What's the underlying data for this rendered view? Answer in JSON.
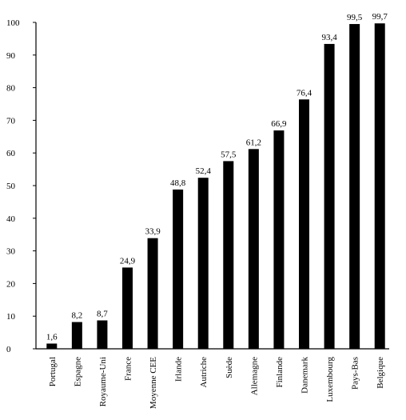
{
  "chart_data": {
    "type": "bar",
    "title": "",
    "xlabel": "",
    "ylabel": "",
    "ylim": [
      0,
      100
    ],
    "yticks": [
      0,
      10,
      20,
      30,
      40,
      50,
      60,
      70,
      80,
      90,
      100
    ],
    "grid": false,
    "legend": "none",
    "bar_color": "#000000",
    "categories": [
      "Portugal",
      "Espagne",
      "Royaume-Uni",
      "France",
      "Moyenne CEE",
      "Irlande",
      "Autriche",
      "Suède",
      "Allemagne",
      "Finlande",
      "Danemark",
      "Luxembourg",
      "Pays-Bas",
      "Belgique"
    ],
    "values": [
      1.6,
      8.2,
      8.7,
      24.9,
      33.9,
      48.8,
      52.4,
      57.5,
      61.2,
      66.9,
      76.4,
      93.4,
      99.5,
      99.7
    ],
    "value_labels": [
      "1,6",
      "8,2",
      "8,7",
      "24,9",
      "33,9",
      "48,8",
      "52,4",
      "57,5",
      "61,2",
      "66,9",
      "76,4",
      "93,4",
      "99,5",
      "99,7"
    ],
    "category_labels": [
      "Portugal",
      "Espagne",
      "Royaume-Uni",
      "France",
      "Moyenne CEE",
      "Irlande",
      "Autriche",
      "Suède",
      "Allemagne",
      "Finlande",
      "Danemark",
      "Luxembourg",
      "Pays-Bas",
      "Belgique"
    ]
  }
}
